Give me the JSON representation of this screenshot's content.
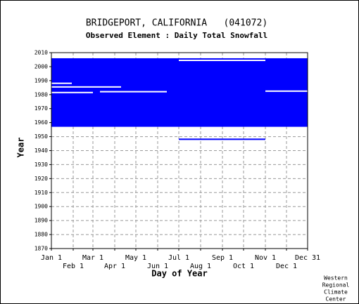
{
  "chart_data": {
    "type": "availability",
    "title": "BRIDGEPORT, CALIFORNIA   (041072)",
    "subtitle": "Observed Element : Daily Total Snowfall",
    "x_label": "Day of Year",
    "y_label": "Year",
    "credit": [
      "Western",
      "Regional",
      "Climate",
      "Center"
    ],
    "color": "#0000ff",
    "grid": true,
    "xlim": [
      1,
      365
    ],
    "xticks": [
      {
        "value": 1,
        "label": "Jan 1"
      },
      {
        "value": 32,
        "label": "Feb 1"
      },
      {
        "value": 60,
        "label": "Mar 1"
      },
      {
        "value": 91,
        "label": "Apr 1"
      },
      {
        "value": 121,
        "label": "May 1"
      },
      {
        "value": 152,
        "label": "Jun 1"
      },
      {
        "value": 182,
        "label": "Jul 1"
      },
      {
        "value": 213,
        "label": "Aug 1"
      },
      {
        "value": 244,
        "label": "Sep 1"
      },
      {
        "value": 274,
        "label": "Oct 1"
      },
      {
        "value": 305,
        "label": "Nov 1"
      },
      {
        "value": 335,
        "label": "Dec 1"
      },
      {
        "value": 365,
        "label": "Dec 31"
      }
    ],
    "ylim": [
      1870,
      2010
    ],
    "yticks": [
      1870,
      1880,
      1890,
      1900,
      1910,
      1920,
      1930,
      1940,
      1950,
      1960,
      1970,
      1980,
      1990,
      2000,
      2010
    ],
    "records": [
      {
        "years": [
          1957,
          2006
        ],
        "days": [
          1,
          365
        ]
      },
      {
        "years": [
          1948,
          1948.6
        ],
        "days": [
          182,
          305
        ]
      }
    ],
    "missing": [
      {
        "years": [
          1981,
          1982
        ],
        "days": [
          1,
          60
        ]
      },
      {
        "years": [
          1985,
          1986
        ],
        "days": [
          1,
          100
        ]
      },
      {
        "years": [
          1982,
          1982.6
        ],
        "days": [
          70,
          165
        ]
      },
      {
        "years": [
          1982,
          1983
        ],
        "days": [
          305,
          365
        ]
      },
      {
        "years": [
          1988,
          1988.6
        ],
        "days": [
          1,
          30
        ]
      },
      {
        "years": [
          2004.5,
          2005
        ],
        "days": [
          182,
          305
        ]
      }
    ]
  }
}
